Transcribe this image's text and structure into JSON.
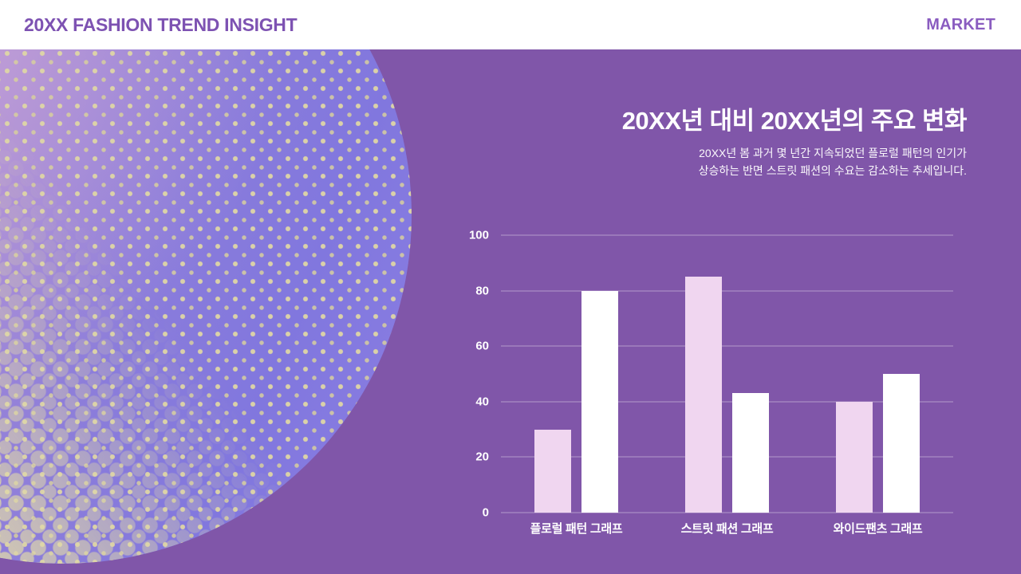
{
  "header": {
    "title": "20XX FASHION TREND INSIGHT",
    "right_label": "MARKET",
    "accent_color": "#7d52b2",
    "background": "#ffffff"
  },
  "main": {
    "title": "20XX년 대비 20XX년의 주요 변화",
    "subtitle": "20XX년 봄 과거 몇 년간 지속되었던 플로럴 패턴의 인기가\n상승하는 반면 스트릿 패션의 수요는 감소하는 추세입니다."
  },
  "chart_data": {
    "type": "bar",
    "title": "",
    "xlabel": "",
    "ylabel": "",
    "categories": [
      "플로럴 패턴 그래프",
      "스트릿 패션 그래프",
      "와이드팬츠 그래프"
    ],
    "series": [
      {
        "name": "pink-bars",
        "color": "#f0d6f0",
        "values": [
          30,
          85,
          40
        ]
      },
      {
        "name": "white-bars",
        "color": "#ffffff",
        "values": [
          80,
          43,
          50
        ]
      }
    ],
    "ylim": [
      0,
      100
    ],
    "yticks": [
      0,
      20,
      40,
      60,
      80,
      100
    ],
    "grid": true,
    "legend": false
  },
  "colors": {
    "page_background": "#8056a9",
    "gridline": "rgba(255,255,255,0.40)",
    "text": "#ffffff",
    "circle_dot": "#ded6a5"
  }
}
